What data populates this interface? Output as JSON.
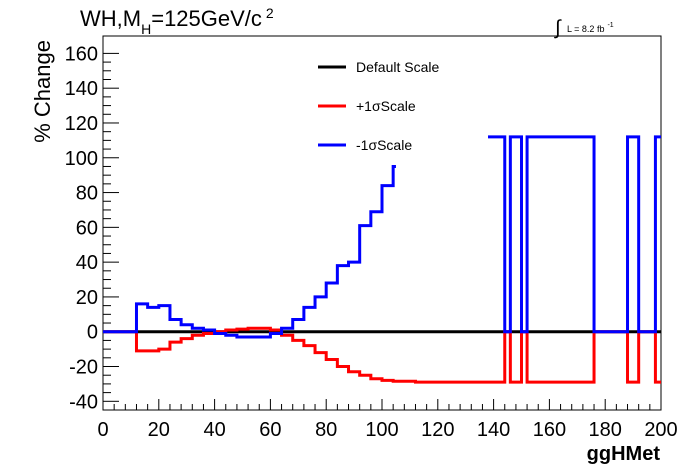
{
  "chart_data": {
    "type": "line",
    "title_parts": {
      "main": "WH,M",
      "sub": "H",
      "rest": "=125GeV/c",
      "sup": "2"
    },
    "lumi_parts": {
      "integral": "∫",
      "text": "L = 8.2 fb",
      "sup": "-1"
    },
    "xlabel": "ggHMet",
    "ylabel": "% Change",
    "xlim": [
      0,
      200
    ],
    "ylim": [
      -45,
      170
    ],
    "xticks": [
      0,
      20,
      40,
      60,
      80,
      100,
      120,
      140,
      160,
      180,
      200
    ],
    "yticks": [
      -40,
      -20,
      0,
      20,
      40,
      60,
      80,
      100,
      120,
      140,
      160
    ],
    "legend_position": "top-center",
    "bin_width": 4,
    "series": [
      {
        "name": "Default Scale",
        "color": "#000000",
        "bins": [
          [
            0,
            200,
            0
          ]
        ]
      },
      {
        "name": "+1σScale",
        "color": "#ff0000",
        "bins": [
          [
            0,
            12,
            0
          ],
          [
            12,
            16,
            -11
          ],
          [
            16,
            20,
            -11
          ],
          [
            20,
            24,
            -10
          ],
          [
            24,
            28,
            -6
          ],
          [
            28,
            32,
            -4
          ],
          [
            32,
            36,
            -2
          ],
          [
            36,
            40,
            -1
          ],
          [
            40,
            44,
            0
          ],
          [
            44,
            48,
            1
          ],
          [
            48,
            52,
            1.5
          ],
          [
            52,
            56,
            2
          ],
          [
            56,
            60,
            2
          ],
          [
            60,
            64,
            1
          ],
          [
            64,
            68,
            -2
          ],
          [
            68,
            72,
            -5
          ],
          [
            72,
            76,
            -8
          ],
          [
            76,
            80,
            -12
          ],
          [
            80,
            84,
            -16
          ],
          [
            84,
            88,
            -20
          ],
          [
            88,
            92,
            -23
          ],
          [
            92,
            96,
            -25
          ],
          [
            96,
            100,
            -27
          ],
          [
            100,
            104,
            -28
          ],
          [
            104,
            108,
            -28.5
          ],
          [
            108,
            112,
            -28.5
          ],
          [
            112,
            144,
            -29
          ],
          [
            144,
            146,
            0
          ],
          [
            146,
            150,
            -29
          ],
          [
            150,
            152,
            0
          ],
          [
            152,
            156,
            -29
          ],
          [
            156,
            176,
            -29
          ],
          [
            176,
            188,
            0
          ],
          [
            188,
            192,
            -29
          ],
          [
            192,
            194,
            0
          ],
          [
            194,
            198,
            0
          ],
          [
            198,
            200,
            -29
          ]
        ]
      },
      {
        "name": "-1σScale",
        "color": "#0000ff",
        "bins": [
          [
            0,
            12,
            0
          ],
          [
            12,
            16,
            16
          ],
          [
            16,
            20,
            14
          ],
          [
            20,
            24,
            15
          ],
          [
            24,
            28,
            7
          ],
          [
            28,
            32,
            4
          ],
          [
            32,
            36,
            2
          ],
          [
            36,
            40,
            1
          ],
          [
            40,
            44,
            -1
          ],
          [
            44,
            48,
            -2
          ],
          [
            48,
            52,
            -3
          ],
          [
            52,
            56,
            -3
          ],
          [
            56,
            60,
            -3
          ],
          [
            60,
            64,
            -1
          ],
          [
            64,
            68,
            2
          ],
          [
            68,
            72,
            7
          ],
          [
            72,
            76,
            14
          ],
          [
            76,
            80,
            20
          ],
          [
            80,
            84,
            28
          ],
          [
            84,
            88,
            38
          ],
          [
            88,
            92,
            40
          ],
          [
            92,
            96,
            61
          ],
          [
            96,
            100,
            69
          ],
          [
            100,
            104,
            84
          ],
          [
            104,
            105,
            95
          ],
          [
            138,
            144,
            112
          ],
          [
            144,
            146,
            0
          ],
          [
            146,
            150,
            112
          ],
          [
            150,
            152,
            0
          ],
          [
            152,
            156,
            112
          ],
          [
            156,
            176,
            112
          ],
          [
            176,
            188,
            0
          ],
          [
            188,
            192,
            112
          ],
          [
            192,
            194,
            0
          ],
          [
            194,
            198,
            0
          ],
          [
            198,
            200,
            112
          ]
        ]
      }
    ]
  }
}
